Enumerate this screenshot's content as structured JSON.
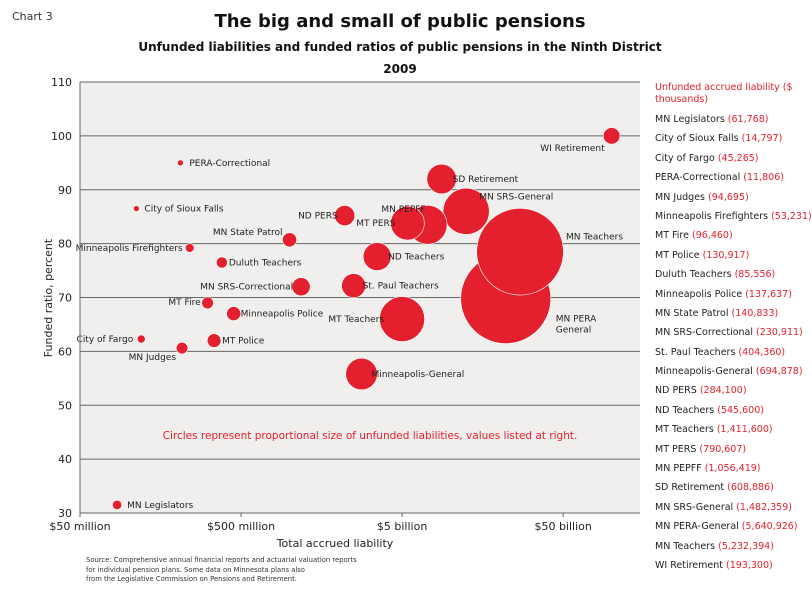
{
  "chart_number": "Chart 3",
  "legend_heading": "Unfunded accrued liability ($ thousands)",
  "source_lines": [
    "Source: Comprehensive annual financial reports and actuarial valuation reports",
    "for individual pension plans. Some data on Minnesota plans also",
    "from the Legislative Commission on Pensions and Retirement."
  ],
  "colors": {
    "bubble": "#e5202e",
    "accent_text": "#e5202e",
    "grid": "#666666",
    "plot_bg": "#f0efed"
  },
  "chart_data": {
    "type": "scatter",
    "title": "The big and small of public pensions",
    "subtitle": "Unfunded liabilities and funded ratios of public pensions in the Ninth District",
    "period": "2009",
    "xlabel": "Total accrued liability",
    "ylabel": "Funded ratio, percent",
    "x_scale": "log",
    "xlim": [
      50,
      150000
    ],
    "x_ticks": [
      50,
      500,
      5000,
      50000
    ],
    "x_tick_labels": [
      "$50 million",
      "$500 million",
      "$5 billion",
      "$50 billion"
    ],
    "ylim": [
      30,
      110
    ],
    "y_ticks": [
      30,
      40,
      50,
      60,
      70,
      80,
      90,
      100,
      110
    ],
    "grid": true,
    "note": "Circles represent proportional size of unfunded liabilities, values listed at right.",
    "points": [
      {
        "name": "MN Legislators",
        "x": 85,
        "y": 31.5,
        "unfunded": 61768,
        "display_value": "61,768"
      },
      {
        "name": "City of Sioux Falls",
        "x": 112,
        "y": 86.5,
        "unfunded": 14797,
        "display_value": "14,797"
      },
      {
        "name": "City of Fargo",
        "x": 120,
        "y": 62.3,
        "unfunded": 45265,
        "display_value": "45,265"
      },
      {
        "name": "PERA-Correctional",
        "x": 210,
        "y": 95,
        "unfunded": 11806,
        "display_value": "11,806"
      },
      {
        "name": "MN Judges",
        "x": 215,
        "y": 60.6,
        "unfunded": 94695,
        "display_value": "94,695"
      },
      {
        "name": "Minneapolis Firefighters",
        "x": 240,
        "y": 79.2,
        "unfunded": 53231,
        "display_value": "53,231"
      },
      {
        "name": "MT Fire",
        "x": 310,
        "y": 69,
        "unfunded": 96460,
        "display_value": "96,460"
      },
      {
        "name": "MT Police",
        "x": 340,
        "y": 62,
        "unfunded": 130917,
        "display_value": "130,917"
      },
      {
        "name": "Duluth Teachers",
        "x": 380,
        "y": 76.5,
        "unfunded": 85556,
        "display_value": "85,556"
      },
      {
        "name": "Minneapolis Police",
        "x": 450,
        "y": 67,
        "unfunded": 137637,
        "display_value": "137,637"
      },
      {
        "name": "MN State Patrol",
        "x": 1000,
        "y": 80.7,
        "unfunded": 140833,
        "display_value": "140,833"
      },
      {
        "name": "MN SRS-Correctional",
        "x": 1180,
        "y": 72,
        "unfunded": 230911,
        "display_value": "230,911"
      },
      {
        "name": "St. Paul Teachers",
        "x": 2500,
        "y": 72.2,
        "unfunded": 404360,
        "display_value": "404,360"
      },
      {
        "name": "Minneapolis-General",
        "x": 2800,
        "y": 55.8,
        "unfunded": 694878,
        "display_value": "694,878"
      },
      {
        "name": "ND PERS",
        "x": 2200,
        "y": 85.2,
        "unfunded": 284100,
        "display_value": "284,100"
      },
      {
        "name": "ND Teachers",
        "x": 3500,
        "y": 77.6,
        "unfunded": 545600,
        "display_value": "545,600"
      },
      {
        "name": "MT Teachers",
        "x": 5000,
        "y": 66,
        "unfunded": 1411600,
        "display_value": "1,411,600"
      },
      {
        "name": "MT PERS",
        "x": 5400,
        "y": 83.8,
        "unfunded": 790607,
        "display_value": "790,607"
      },
      {
        "name": "MN PEPFF",
        "x": 7200,
        "y": 83.5,
        "unfunded": 1056419,
        "display_value": "1,056,419"
      },
      {
        "name": "SD Retirement",
        "x": 8800,
        "y": 92,
        "unfunded": 608886,
        "display_value": "608,886"
      },
      {
        "name": "MN SRS-General",
        "x": 12500,
        "y": 86,
        "unfunded": 1482359,
        "display_value": "1,482,359"
      },
      {
        "name": "MN PERA-General",
        "x": 22000,
        "y": 69.8,
        "unfunded": 5640926,
        "display_value": "5,640,926"
      },
      {
        "name": "MN Teachers",
        "x": 27000,
        "y": 78.5,
        "unfunded": 5232394,
        "display_value": "5,232,394"
      },
      {
        "name": "WI Retirement",
        "x": 100000,
        "y": 100,
        "unfunded": 193300,
        "display_value": "193,300"
      }
    ],
    "point_labels": [
      {
        "name": "MN Legislators",
        "text": "MN Legislators"
      },
      {
        "name": "City of Sioux Falls",
        "text": "City of Sioux Falls"
      },
      {
        "name": "City of Fargo",
        "text": "City of Fargo"
      },
      {
        "name": "PERA-Correctional",
        "text": "PERA-Correctional"
      },
      {
        "name": "MN Judges",
        "text": "MN Judges"
      },
      {
        "name": "Minneapolis Firefighters",
        "text": "Minneapolis Firefighters"
      },
      {
        "name": "MT Fire",
        "text": "MT Fire"
      },
      {
        "name": "MT Police",
        "text": "MT Police"
      },
      {
        "name": "Duluth Teachers",
        "text": "Duluth Teachers"
      },
      {
        "name": "Minneapolis Police",
        "text": "Minneapolis Police"
      },
      {
        "name": "MN State Patrol",
        "text": "MN State Patrol"
      },
      {
        "name": "MN SRS-Correctional",
        "text": "MN SRS-Correctional"
      },
      {
        "name": "St. Paul Teachers",
        "text": "St. Paul Teachers"
      },
      {
        "name": "Minneapolis-General",
        "text": "Minneapolis-General"
      },
      {
        "name": "ND PERS",
        "text": "ND PERS"
      },
      {
        "name": "ND Teachers",
        "text": "ND Teachers"
      },
      {
        "name": "MT Teachers",
        "text": "MT Teachers"
      },
      {
        "name": "MT PERS",
        "text": "MT PERS"
      },
      {
        "name": "MN PEPFF",
        "text": "MN PEPFF"
      },
      {
        "name": "SD Retirement",
        "text": "SD Retirement"
      },
      {
        "name": "MN SRS-General",
        "text": "MN SRS-General"
      },
      {
        "name": "MN PERA-General",
        "text": "MN PERA General"
      },
      {
        "name": "MN Teachers",
        "text": "MN Teachers"
      },
      {
        "name": "WI Retirement",
        "text": "WI Retirement"
      }
    ],
    "legend_order": [
      "MN Legislators",
      "City of Sioux Falls",
      "City of Fargo",
      "PERA-Correctional",
      "MN Judges",
      "Minneapolis Firefighters",
      "MT Fire",
      "MT Police",
      "Duluth Teachers",
      "Minneapolis Police",
      "MN State Patrol",
      "MN SRS-Correctional",
      "St. Paul Teachers",
      "Minneapolis-General",
      "ND PERS",
      "ND Teachers",
      "MT Teachers",
      "MT PERS",
      "MN PEPFF",
      "SD Retirement",
      "MN SRS-General",
      "MN PERA-General",
      "MN Teachers",
      "WI Retirement"
    ]
  }
}
